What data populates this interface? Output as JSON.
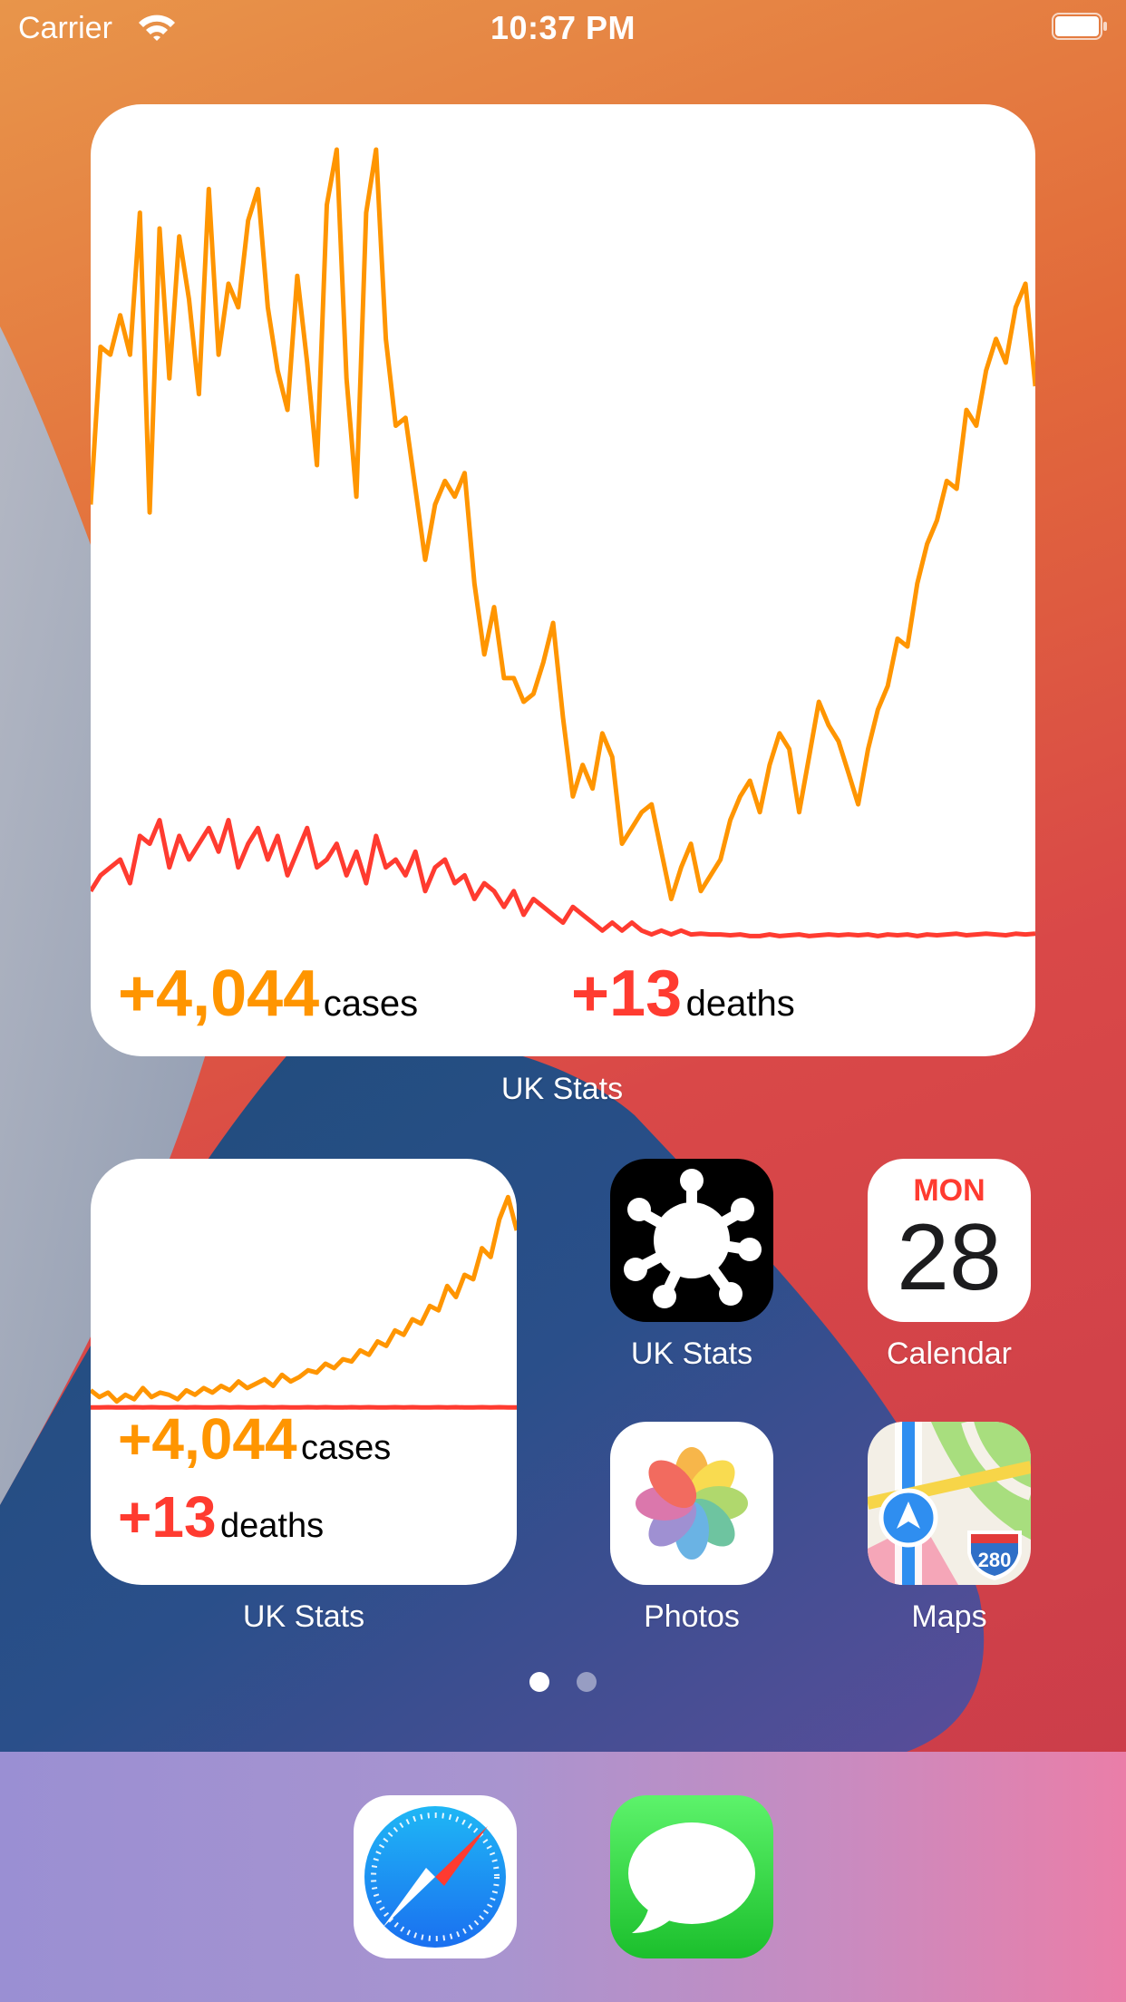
{
  "status_bar": {
    "carrier": "Carrier",
    "time": "10:37 PM"
  },
  "large_widget": {
    "cases": "+4,044",
    "cases_label": "cases",
    "deaths": "+13",
    "deaths_label": "deaths",
    "caption": "UK Stats"
  },
  "small_widget": {
    "cases": "+4,044",
    "cases_label": "cases",
    "deaths": "+13",
    "deaths_label": "deaths",
    "caption": "UK Stats"
  },
  "apps": [
    {
      "id": "uk-stats",
      "label": "UK Stats",
      "icon": "virus-icon"
    },
    {
      "id": "calendar",
      "label": "Calendar",
      "icon": "calendar-icon",
      "weekday": "MON",
      "day": "28"
    },
    {
      "id": "photos",
      "label": "Photos",
      "icon": "photos-flower-icon"
    },
    {
      "id": "maps",
      "label": "Maps",
      "icon": "map-icon",
      "shield": "280"
    }
  ],
  "dock": [
    {
      "id": "safari",
      "icon": "compass-icon"
    },
    {
      "id": "messages",
      "icon": "speech-bubble-icon"
    }
  ],
  "page_dots": {
    "count": 2,
    "active": 0
  },
  "colors": {
    "cases": "#ff9500",
    "deaths": "#ff3b30"
  },
  "chart_data": [
    {
      "type": "line",
      "series": [
        {
          "values": [
            55,
            75,
            74,
            79,
            74,
            92,
            54,
            90,
            71,
            89,
            81,
            69,
            95,
            74,
            83,
            80,
            91,
            95,
            80,
            72,
            67,
            84,
            73,
            60,
            93,
            100,
            71,
            56,
            92,
            100,
            76,
            65,
            66,
            57,
            48,
            55,
            58,
            56,
            59,
            45,
            36,
            42,
            33,
            33,
            30,
            31,
            35,
            40,
            28,
            18,
            22,
            19,
            26,
            23,
            12,
            14,
            16,
            17,
            11,
            5,
            9,
            12,
            6,
            8,
            10,
            15,
            18,
            20,
            16,
            22,
            26,
            24,
            16,
            23,
            30,
            27,
            25,
            21,
            17,
            24,
            29,
            32,
            38,
            37,
            45,
            50,
            53,
            58,
            57,
            67,
            65,
            72,
            76,
            73,
            80,
            83,
            70
          ]
        },
        {
          "values": [
            6,
            8,
            9,
            10,
            7,
            13,
            12,
            15,
            9,
            13,
            10,
            12,
            14,
            11,
            15,
            9,
            12,
            14,
            10,
            13,
            8,
            11,
            14,
            9,
            10,
            12,
            8,
            11,
            7,
            13,
            9,
            10,
            8,
            11,
            6,
            9,
            10,
            7,
            8,
            5,
            7,
            6,
            4,
            6,
            3,
            5,
            4,
            3,
            2,
            4,
            3,
            2,
            1,
            2,
            1,
            2,
            1,
            0.5,
            1,
            0.5,
            1,
            0.5,
            0.6,
            0.5,
            0.5,
            0.4,
            0.5,
            0.3,
            0.3,
            0.5,
            0.3,
            0.4,
            0.5,
            0.3,
            0.4,
            0.5,
            0.4,
            0.5,
            0.4,
            0.5,
            0.3,
            0.5,
            0.4,
            0.5,
            0.3,
            0.5,
            0.4,
            0.5,
            0.6,
            0.4,
            0.5,
            0.6,
            0.5,
            0.4,
            0.6,
            0.5,
            0.6
          ]
        }
      ]
    },
    {
      "type": "line",
      "series": [
        {
          "values": [
            8,
            5,
            7,
            3,
            6,
            4,
            9,
            5,
            7,
            6,
            4,
            8,
            6,
            9,
            7,
            10,
            8,
            12,
            9,
            11,
            13,
            10,
            15,
            12,
            14,
            17,
            16,
            20,
            18,
            22,
            21,
            26,
            24,
            30,
            28,
            35,
            33,
            40,
            38,
            46,
            44,
            55,
            50,
            60,
            58,
            72,
            68,
            85,
            95,
            80
          ]
        },
        {
          "values": [
            0.3,
            0.3,
            0.4,
            0.3,
            0.3,
            0.4,
            0.3,
            0.4,
            0.3,
            0.3,
            0.4,
            0.3,
            0.4,
            0.3,
            0.3,
            0.4,
            0.3,
            0.4,
            0.3,
            0.3,
            0.4,
            0.3,
            0.4,
            0.3,
            0.3,
            0.4,
            0.3,
            0.4,
            0.3,
            0.3,
            0.4,
            0.3,
            0.4,
            0.3,
            0.3,
            0.4,
            0.3,
            0.4,
            0.3,
            0.3,
            0.4,
            0.3,
            0.4,
            0.3,
            0.3,
            0.4,
            0.3,
            0.4,
            0.3,
            0.3
          ]
        }
      ]
    }
  ]
}
